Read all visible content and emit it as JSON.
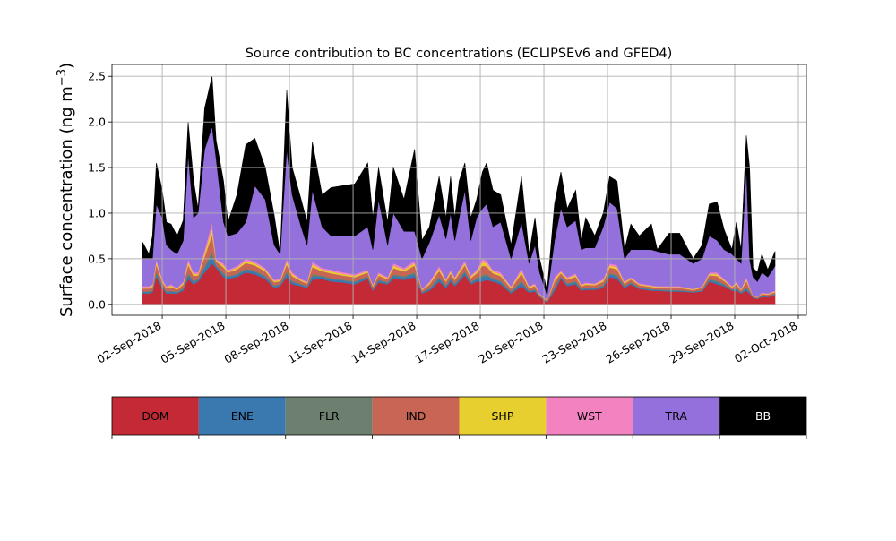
{
  "chart_data": {
    "type": "area",
    "stacked": true,
    "title": "Source contribution to BC concentrations (ECLIPSEv6 and GFED4)",
    "ylabel": "Surface concentration (ng m",
    "ylabel_sup": "−3",
    "ylabel_end": ")",
    "xlabel": "",
    "x_unit": "days since 01-Sep-2018 00:00",
    "xlim": [
      -1.37,
      31.38
    ],
    "ylim": [
      -0.12,
      2.63
    ],
    "grid": true,
    "legend_placement": "bottom colorbar",
    "yticks": [
      0,
      0.5,
      1.0,
      1.5,
      2.0,
      2.5
    ],
    "ytick_labels": [
      "0.0",
      "0.5",
      "1.0",
      "1.5",
      "2.0",
      "2.5"
    ],
    "xticks": [
      1,
      4,
      7,
      10,
      13,
      16,
      19,
      22,
      25,
      28,
      31
    ],
    "xtick_labels": [
      "02-Sep-2018",
      "05-Sep-2018",
      "08-Sep-2018",
      "11-Sep-2018",
      "14-Sep-2018",
      "17-Sep-2018",
      "20-Sep-2018",
      "23-Sep-2018",
      "26-Sep-2018",
      "29-Sep-2018",
      "02-Oct-2018"
    ],
    "x": [
      0.08,
      0.37,
      0.54,
      0.72,
      1.0,
      1.2,
      1.42,
      1.7,
      1.99,
      2.22,
      2.48,
      2.69,
      3.0,
      3.35,
      3.54,
      3.89,
      4.1,
      4.52,
      4.94,
      5.37,
      5.86,
      6.28,
      6.56,
      6.87,
      7.13,
      7.55,
      7.83,
      8.08,
      8.54,
      8.96,
      9.52,
      10.08,
      10.69,
      10.93,
      11.2,
      11.63,
      11.9,
      12.4,
      12.9,
      13.25,
      13.6,
      14.06,
      14.38,
      14.6,
      14.8,
      15.0,
      15.27,
      15.55,
      15.83,
      16.1,
      16.3,
      16.6,
      16.96,
      17.45,
      17.94,
      18.3,
      18.58,
      18.8,
      19.15,
      19.5,
      19.8,
      20.1,
      20.5,
      20.76,
      20.97,
      21.4,
      21.8,
      22.1,
      22.45,
      22.8,
      23.1,
      23.5,
      24.07,
      24.35,
      24.9,
      25.4,
      26.04,
      26.46,
      26.8,
      27.17,
      27.5,
      27.87,
      28.08,
      28.3,
      28.55,
      28.7,
      28.86,
      29.07,
      29.28,
      29.56,
      29.9
    ],
    "series": [
      {
        "name": "DOM",
        "color": "#c42a36",
        "values": [
          0.12,
          0.12,
          0.13,
          0.3,
          0.18,
          0.12,
          0.12,
          0.12,
          0.15,
          0.28,
          0.22,
          0.25,
          0.35,
          0.45,
          0.4,
          0.3,
          0.28,
          0.3,
          0.35,
          0.33,
          0.28,
          0.18,
          0.2,
          0.3,
          0.22,
          0.2,
          0.18,
          0.27,
          0.28,
          0.25,
          0.24,
          0.22,
          0.28,
          0.15,
          0.24,
          0.22,
          0.28,
          0.27,
          0.3,
          0.12,
          0.15,
          0.25,
          0.18,
          0.25,
          0.2,
          0.25,
          0.32,
          0.22,
          0.25,
          0.25,
          0.27,
          0.25,
          0.22,
          0.12,
          0.2,
          0.13,
          0.14,
          0.08,
          0.02,
          0.15,
          0.28,
          0.2,
          0.22,
          0.15,
          0.16,
          0.16,
          0.18,
          0.3,
          0.28,
          0.18,
          0.22,
          0.17,
          0.15,
          0.15,
          0.14,
          0.14,
          0.13,
          0.14,
          0.25,
          0.22,
          0.2,
          0.15,
          0.15,
          0.12,
          0.15,
          0.12,
          0.07,
          0.06,
          0.08,
          0.08,
          0.1
        ]
      },
      {
        "name": "ENE",
        "color": "#3a78b0",
        "values": [
          0.016,
          0.016,
          0.018,
          0.04,
          0.02,
          0.016,
          0.02,
          0.012,
          0.02,
          0.044,
          0.026,
          0.02,
          0.05,
          0.09,
          0.02,
          0.03,
          0.02,
          0.024,
          0.03,
          0.028,
          0.024,
          0.018,
          0.016,
          0.04,
          0.026,
          0.016,
          0.014,
          0.04,
          0.024,
          0.026,
          0.022,
          0.022,
          0.02,
          0.014,
          0.022,
          0.016,
          0.034,
          0.026,
          0.036,
          0.01,
          0.02,
          0.034,
          0.02,
          0.026,
          0.02,
          0.026,
          0.032,
          0.02,
          0.026,
          0.05,
          0.042,
          0.026,
          0.026,
          0.016,
          0.04,
          0.014,
          0.018,
          0.008,
          0.006,
          0.03,
          0.018,
          0.02,
          0.024,
          0.014,
          0.016,
          0.014,
          0.02,
          0.03,
          0.03,
          0.014,
          0.016,
          0.012,
          0.012,
          0.01,
          0.012,
          0.012,
          0.008,
          0.012,
          0.02,
          0.026,
          0.016,
          0.01,
          0.02,
          0.01,
          0.03,
          0.016,
          0.006,
          0.004,
          0.01,
          0.008,
          0.01
        ]
      },
      {
        "name": "FLR",
        "color": "#6d8070",
        "values": [
          0.008,
          0.008,
          0.009,
          0.02,
          0.01,
          0.008,
          0.01,
          0.006,
          0.01,
          0.022,
          0.013,
          0.01,
          0.025,
          0.045,
          0.01,
          0.015,
          0.01,
          0.012,
          0.015,
          0.014,
          0.012,
          0.009,
          0.008,
          0.02,
          0.013,
          0.008,
          0.007,
          0.02,
          0.012,
          0.013,
          0.011,
          0.011,
          0.01,
          0.007,
          0.011,
          0.008,
          0.017,
          0.013,
          0.018,
          0.005,
          0.01,
          0.017,
          0.01,
          0.013,
          0.01,
          0.013,
          0.016,
          0.01,
          0.013,
          0.025,
          0.021,
          0.013,
          0.013,
          0.008,
          0.02,
          0.007,
          0.009,
          0.004,
          0.003,
          0.015,
          0.009,
          0.01,
          0.012,
          0.007,
          0.008,
          0.007,
          0.01,
          0.015,
          0.015,
          0.007,
          0.008,
          0.006,
          0.006,
          0.005,
          0.006,
          0.006,
          0.004,
          0.006,
          0.01,
          0.013,
          0.008,
          0.005,
          0.01,
          0.005,
          0.015,
          0.008,
          0.003,
          0.002,
          0.005,
          0.004,
          0.005
        ]
      },
      {
        "name": "IND",
        "color": "#c86555",
        "values": [
          0.032,
          0.032,
          0.036,
          0.08,
          0.04,
          0.032,
          0.04,
          0.024,
          0.04,
          0.088,
          0.052,
          0.04,
          0.1,
          0.18,
          0.04,
          0.06,
          0.04,
          0.048,
          0.06,
          0.056,
          0.048,
          0.036,
          0.032,
          0.08,
          0.052,
          0.032,
          0.028,
          0.08,
          0.048,
          0.052,
          0.044,
          0.044,
          0.04,
          0.028,
          0.044,
          0.032,
          0.068,
          0.052,
          0.072,
          0.02,
          0.04,
          0.068,
          0.04,
          0.052,
          0.04,
          0.052,
          0.064,
          0.04,
          0.052,
          0.1,
          0.084,
          0.052,
          0.052,
          0.032,
          0.08,
          0.028,
          0.036,
          0.016,
          0.012,
          0.06,
          0.036,
          0.04,
          0.048,
          0.028,
          0.032,
          0.028,
          0.04,
          0.06,
          0.06,
          0.028,
          0.032,
          0.024,
          0.024,
          0.02,
          0.024,
          0.024,
          0.016,
          0.024,
          0.04,
          0.052,
          0.032,
          0.02,
          0.04,
          0.02,
          0.06,
          0.032,
          0.012,
          0.008,
          0.02,
          0.016,
          0.02
        ]
      },
      {
        "name": "SHP",
        "color": "#e6cf2e",
        "values": [
          0.012,
          0.012,
          0.014,
          0.03,
          0.015,
          0.012,
          0.015,
          0.009,
          0.015,
          0.033,
          0.02,
          0.015,
          0.038,
          0.068,
          0.015,
          0.023,
          0.015,
          0.018,
          0.023,
          0.021,
          0.018,
          0.014,
          0.012,
          0.03,
          0.02,
          0.012,
          0.011,
          0.03,
          0.018,
          0.02,
          0.017,
          0.017,
          0.015,
          0.011,
          0.017,
          0.012,
          0.026,
          0.02,
          0.027,
          0.008,
          0.015,
          0.026,
          0.015,
          0.02,
          0.015,
          0.02,
          0.024,
          0.015,
          0.02,
          0.038,
          0.032,
          0.02,
          0.02,
          0.012,
          0.03,
          0.011,
          0.014,
          0.006,
          0.005,
          0.023,
          0.014,
          0.015,
          0.018,
          0.011,
          0.012,
          0.011,
          0.015,
          0.023,
          0.023,
          0.011,
          0.012,
          0.009,
          0.009,
          0.008,
          0.009,
          0.009,
          0.006,
          0.009,
          0.015,
          0.02,
          0.012,
          0.008,
          0.015,
          0.008,
          0.023,
          0.012,
          0.005,
          0.003,
          0.008,
          0.006,
          0.008
        ]
      },
      {
        "name": "WST",
        "color": "#f282c0",
        "values": [
          0.012,
          0.012,
          0.014,
          0.03,
          0.015,
          0.012,
          0.015,
          0.009,
          0.015,
          0.033,
          0.02,
          0.015,
          0.038,
          0.068,
          0.015,
          0.023,
          0.015,
          0.018,
          0.023,
          0.021,
          0.018,
          0.014,
          0.012,
          0.03,
          0.02,
          0.012,
          0.011,
          0.03,
          0.018,
          0.02,
          0.017,
          0.017,
          0.015,
          0.011,
          0.017,
          0.012,
          0.026,
          0.02,
          0.027,
          0.008,
          0.015,
          0.026,
          0.015,
          0.02,
          0.015,
          0.02,
          0.024,
          0.015,
          0.02,
          0.038,
          0.032,
          0.02,
          0.02,
          0.012,
          0.03,
          0.011,
          0.014,
          0.006,
          0.005,
          0.023,
          0.014,
          0.015,
          0.018,
          0.011,
          0.012,
          0.011,
          0.015,
          0.023,
          0.023,
          0.011,
          0.012,
          0.009,
          0.009,
          0.008,
          0.009,
          0.009,
          0.006,
          0.009,
          0.015,
          0.02,
          0.012,
          0.008,
          0.015,
          0.008,
          0.023,
          0.012,
          0.005,
          0.003,
          0.008,
          0.006,
          0.008
        ]
      },
      {
        "name": "TRA",
        "color": "#9370db",
        "values": [
          0.3,
          0.3,
          0.28,
          0.6,
          0.67,
          0.45,
          0.38,
          0.37,
          0.45,
          1.15,
          0.6,
          0.65,
          1.1,
          1.05,
          1.1,
          0.45,
          0.37,
          0.36,
          0.4,
          0.83,
          0.75,
          0.38,
          0.27,
          1.2,
          0.85,
          0.57,
          0.4,
          0.78,
          0.45,
          0.37,
          0.4,
          0.42,
          0.47,
          0.38,
          0.8,
          0.35,
          0.55,
          0.4,
          0.32,
          0.33,
          0.43,
          0.56,
          0.44,
          0.62,
          0.4,
          0.57,
          0.77,
          0.38,
          0.57,
          0.55,
          0.62,
          0.47,
          0.55,
          0.3,
          0.5,
          0.25,
          0.42,
          0.23,
          0.05,
          0.4,
          0.68,
          0.55,
          0.58,
          0.38,
          0.38,
          0.39,
          0.57,
          0.67,
          0.62,
          0.25,
          0.3,
          0.37,
          0.39,
          0.38,
          0.35,
          0.35,
          0.28,
          0.3,
          0.4,
          0.35,
          0.32,
          0.35,
          0.25,
          0.28,
          1.2,
          0.3,
          0.2,
          0.17,
          0.22,
          0.18,
          0.27
        ]
      },
      {
        "name": "BB",
        "color": "#000000",
        "values": [
          0.18,
          0.05,
          0.25,
          0.45,
          0.3,
          0.25,
          0.28,
          0.2,
          0.22,
          0.35,
          0.4,
          0.05,
          0.45,
          0.55,
          0.2,
          0.45,
          0.15,
          0.42,
          0.85,
          0.52,
          0.35,
          0.33,
          0.0,
          0.65,
          0.3,
          0.3,
          0.25,
          0.53,
          0.35,
          0.53,
          0.55,
          0.57,
          0.7,
          0.35,
          0.35,
          0.25,
          0.5,
          0.35,
          0.9,
          0.2,
          0.17,
          0.42,
          0.23,
          0.4,
          0.25,
          0.4,
          0.3,
          0.25,
          0.2,
          0.4,
          0.45,
          0.4,
          0.3,
          0.15,
          0.5,
          0.1,
          0.3,
          0.15,
          0.05,
          0.4,
          0.4,
          0.2,
          0.33,
          0.1,
          0.33,
          0.13,
          0.15,
          0.28,
          0.3,
          0.1,
          0.28,
          0.15,
          0.28,
          0.02,
          0.23,
          0.23,
          0.05,
          0.15,
          0.35,
          0.42,
          0.22,
          0.05,
          0.4,
          0.15,
          0.35,
          1.0,
          0.1,
          0.1,
          0.2,
          0.08,
          0.16
        ]
      }
    ]
  }
}
